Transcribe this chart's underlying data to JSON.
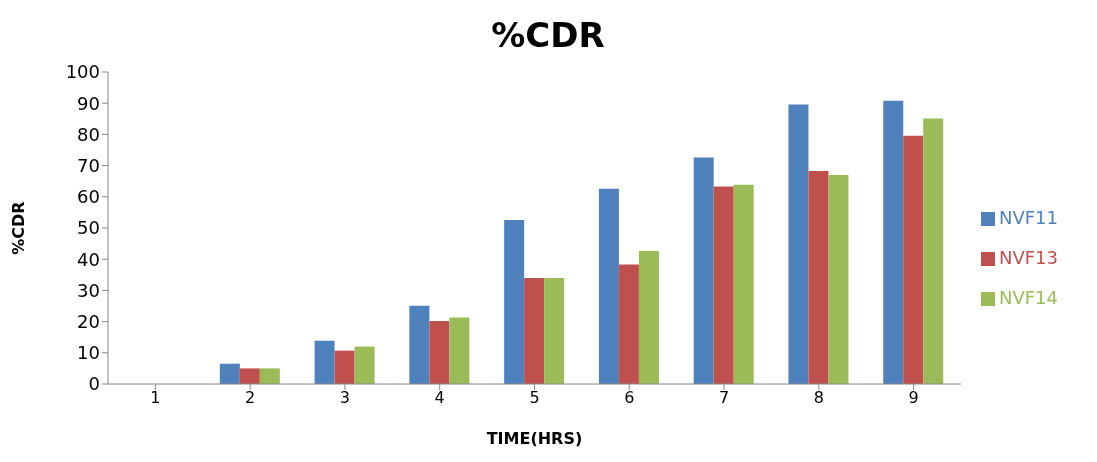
{
  "chart_data": {
    "type": "bar",
    "title": "%CDR",
    "xlabel": "TIME(HRS)",
    "ylabel": "%CDR",
    "categories": [
      "1",
      "2",
      "3",
      "4",
      "5",
      "6",
      "7",
      "8",
      "9"
    ],
    "series": [
      {
        "name": "NVF11",
        "color": "#4f81bd",
        "values": [
          0,
          6.5,
          13.9,
          25.1,
          52.6,
          62.6,
          72.6,
          89.6,
          90.8
        ]
      },
      {
        "name": "NVF13",
        "color": "#c0504d",
        "values": [
          0,
          5,
          10.7,
          20.2,
          34,
          38.3,
          63.3,
          68.3,
          79.6
        ]
      },
      {
        "name": "NVF14",
        "color": "#9bbb59",
        "values": [
          0,
          5,
          12,
          21.3,
          34,
          42.6,
          63.9,
          67,
          85.1
        ]
      }
    ],
    "ylim": [
      0,
      100
    ],
    "yticks": [
      0,
      10,
      20,
      30,
      40,
      50,
      60,
      70,
      80,
      90,
      100
    ],
    "grid": false,
    "legend": "right"
  }
}
